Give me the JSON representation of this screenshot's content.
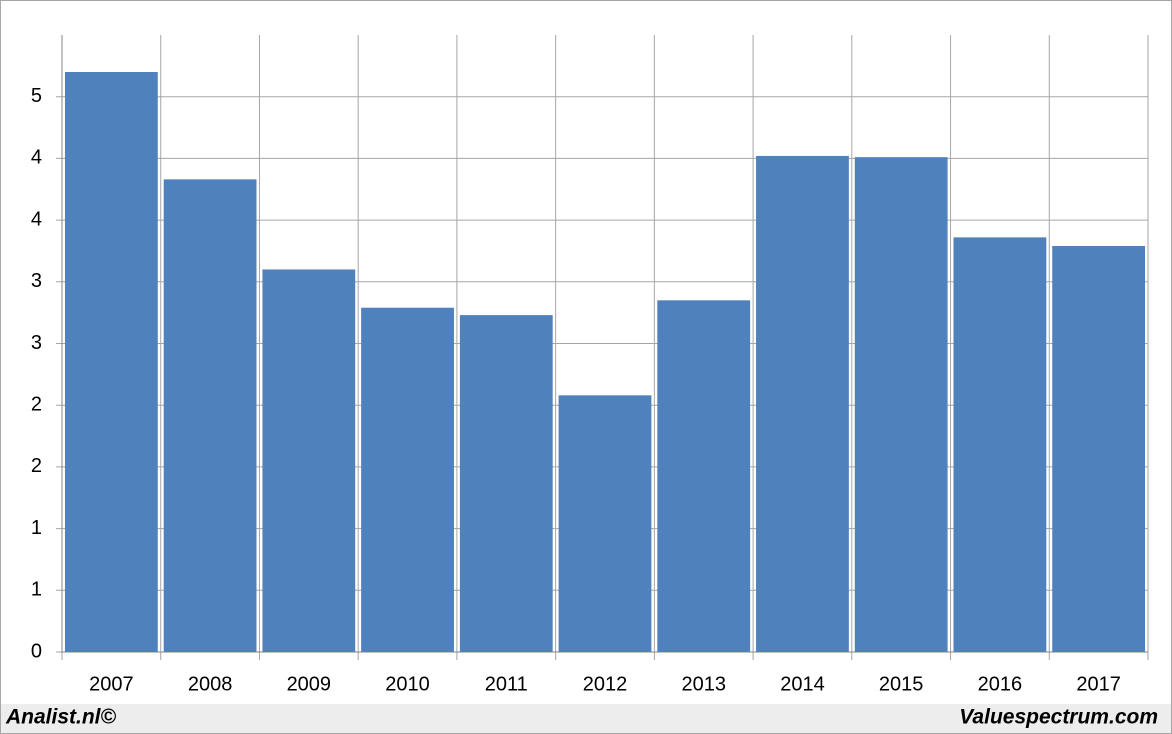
{
  "chart_data": {
    "type": "bar",
    "categories": [
      "2007",
      "2008",
      "2009",
      "2010",
      "2011",
      "2012",
      "2013",
      "2014",
      "2015",
      "2016",
      "2017"
    ],
    "values": [
      4.7,
      3.83,
      3.1,
      2.79,
      2.73,
      2.08,
      2.85,
      4.02,
      4.01,
      3.36,
      3.29
    ],
    "color": "#4f81bd",
    "ylim": [
      0,
      5
    ],
    "yticks": [
      0,
      {
        "value": 0.5,
        "label": "1"
      },
      1,
      {
        "value": 1.5,
        "label": "2"
      },
      2,
      {
        "value": 2.5,
        "label": "3"
      },
      3,
      {
        "value": 3.5,
        "label": "4"
      },
      4,
      {
        "value": 4.5,
        "label": "5"
      }
    ],
    "grid": true,
    "credits": [
      "Analist.nl©",
      "Valuespectrum.com"
    ]
  }
}
